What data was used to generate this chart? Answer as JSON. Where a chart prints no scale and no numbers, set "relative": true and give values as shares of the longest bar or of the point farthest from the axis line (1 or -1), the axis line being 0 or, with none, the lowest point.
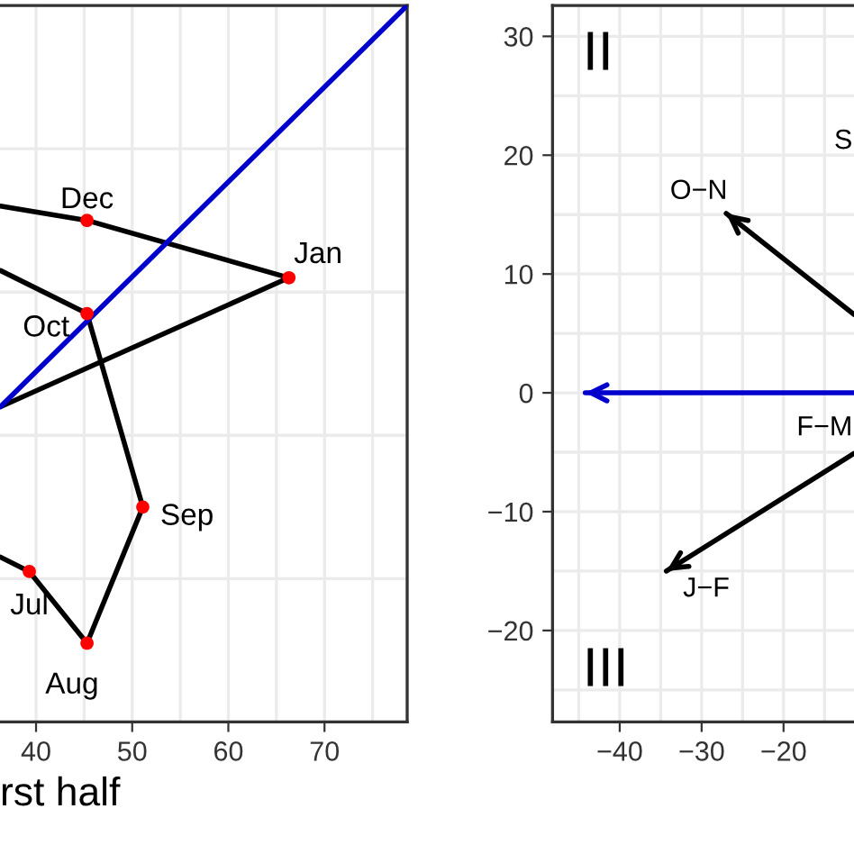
{
  "chart_data": [
    {
      "type": "line",
      "relative": true,
      "xlabel": "rst half",
      "xlim": [
        36.25,
        78.6
      ],
      "xticks": [
        40,
        50,
        60,
        70
      ],
      "grid": true,
      "tick_labels": "x",
      "series": [
        {
          "color": "#000000",
          "x": [
            36.3,
            39.3,
            45.3,
            51.1,
            45.3,
            36.3
          ],
          "values": [
            0.23,
            0.21,
            0.11,
            0.3,
            0.57,
            0.63
          ]
        },
        {
          "color": "#000000",
          "x": [
            36.3,
            45.3,
            66.3,
            36.3
          ],
          "values": [
            0.72,
            0.7,
            0.62,
            0.44
          ]
        },
        {
          "color": "#0000cc",
          "x": [
            36.3,
            78.6
          ],
          "values": [
            0.44,
            1
          ]
        },
        {
          "type": "scatter",
          "color": "#ff0000",
          "x": [
            39.3,
            45.3,
            51.1,
            45.3,
            45.3,
            66.3
          ],
          "values": [
            0.21,
            0.11,
            0.3,
            0.57,
            0.7,
            0.62
          ]
        }
      ],
      "annotations": [
        {
          "text": "Jul",
          "x": 39.3,
          "y": 0.21
        },
        {
          "text": "Aug",
          "x": 45.3,
          "y": 0.11
        },
        {
          "text": "Sep",
          "x": 51.1,
          "y": 0.3
        },
        {
          "text": "Oct",
          "x": 45.3,
          "y": 0.57
        },
        {
          "text": "Dec",
          "x": 45.3,
          "y": 0.7
        },
        {
          "text": "Jan",
          "x": 66.3,
          "y": 0.62
        }
      ]
    },
    {
      "type": "line",
      "xlim": [
        -48.2,
        -11.4
      ],
      "ylim": [
        -27.7,
        32.6
      ],
      "xticks": [
        -40,
        -30,
        -20
      ],
      "yticks": [
        -20,
        -10,
        0,
        10,
        20,
        30
      ],
      "grid": true,
      "series": [
        {
          "color": "#000000",
          "x": [
            -11.4,
            -27.0
          ],
          "values": [
            6.6,
            15.1
          ]
        },
        {
          "color": "#000000",
          "x": [
            -11.4,
            -34.3
          ],
          "values": [
            -5.1,
            -15.0
          ]
        },
        {
          "color": "#0000cc",
          "x": [
            -11.4,
            -44.2
          ],
          "values": [
            0,
            0
          ]
        }
      ],
      "annotations": [
        "II",
        "III",
        "O−N",
        "J−F",
        "F−M",
        "S"
      ]
    }
  ]
}
